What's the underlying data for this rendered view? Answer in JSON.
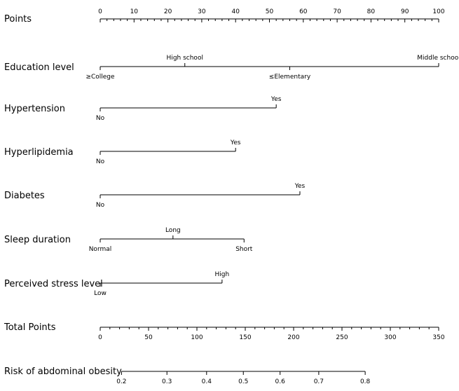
{
  "chart_data": {
    "type": "nomogram",
    "points_axis": {
      "label": "Points",
      "min": 0,
      "max": 100,
      "labeled_ticks": [
        0,
        10,
        20,
        30,
        40,
        50,
        60,
        70,
        80,
        90,
        100
      ],
      "minor_step": 2
    },
    "variables": [
      {
        "label": "Education level",
        "levels": [
          {
            "name": "≥College",
            "points": 0,
            "label_side": "below"
          },
          {
            "name": "High school",
            "points": 25,
            "label_side": "above"
          },
          {
            "name": "≤Elementary",
            "points": 56,
            "label_side": "below"
          },
          {
            "name": "Middle school",
            "points": 100,
            "label_side": "above"
          }
        ]
      },
      {
        "label": "Hypertension",
        "levels": [
          {
            "name": "No",
            "points": 0,
            "label_side": "below"
          },
          {
            "name": "Yes",
            "points": 52,
            "label_side": "above"
          }
        ]
      },
      {
        "label": "Hyperlipidemia",
        "levels": [
          {
            "name": "No",
            "points": 0,
            "label_side": "below"
          },
          {
            "name": "Yes",
            "points": 40,
            "label_side": "above"
          }
        ]
      },
      {
        "label": "Diabetes",
        "levels": [
          {
            "name": "No",
            "points": 0,
            "label_side": "below"
          },
          {
            "name": "Yes",
            "points": 59,
            "label_side": "above"
          }
        ]
      },
      {
        "label": "Sleep duration",
        "levels": [
          {
            "name": "Normal",
            "points": 0,
            "label_side": "below"
          },
          {
            "name": "Long",
            "points": 21.5,
            "label_side": "above"
          },
          {
            "name": "Short",
            "points": 42.5,
            "label_side": "below"
          }
        ]
      },
      {
        "label": "Perceived stress level",
        "levels": [
          {
            "name": "Low",
            "points": 0,
            "label_side": "below"
          },
          {
            "name": "High",
            "points": 36,
            "label_side": "above"
          }
        ]
      }
    ],
    "total_points_axis": {
      "label": "Total Points",
      "min": 0,
      "max": 350,
      "labeled_ticks": [
        0,
        50,
        100,
        150,
        200,
        250,
        300,
        350
      ],
      "minor_step": 10
    },
    "risk_axis": {
      "label": "Risk of abdominal obesity",
      "ticks": [
        {
          "label": "0.2",
          "total_points": 22
        },
        {
          "label": "0.3",
          "total_points": 69
        },
        {
          "label": "0.4",
          "total_points": 110
        },
        {
          "label": "0.5",
          "total_points": 148
        },
        {
          "label": "0.6",
          "total_points": 186
        },
        {
          "label": "0.7",
          "total_points": 226
        },
        {
          "label": "0.8",
          "total_points": 274
        }
      ]
    }
  }
}
